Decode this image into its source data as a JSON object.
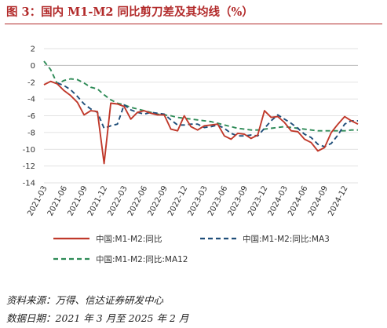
{
  "figure": {
    "title": "图 3：国内 M1-M2 同比剪刀差及其均线（%）",
    "source": "资料来源：万得、信达证券研发中心",
    "date_range": "数据日期：2021 年 3 月至 2025 年 2 月"
  },
  "colors": {
    "title": "#b22a2a",
    "series_m1m2": "#c0392b",
    "series_ma3": "#1f4e79",
    "series_ma12": "#2e8b57",
    "grid": "#d9d9d9"
  },
  "chart_data": {
    "type": "line",
    "title": "",
    "xlabel": "",
    "ylabel": "",
    "ylim": [
      -14,
      2
    ],
    "yticks": [
      2,
      0,
      -2,
      -4,
      -6,
      -8,
      -10,
      -12,
      -14
    ],
    "grid": "horizontal",
    "legend_position": "bottom",
    "x": [
      "2021-03",
      "2021-04",
      "2021-05",
      "2021-06",
      "2021-07",
      "2021-08",
      "2021-09",
      "2021-10",
      "2021-11",
      "2021-12",
      "2022-01",
      "2022-02",
      "2022-03",
      "2022-04",
      "2022-05",
      "2022-06",
      "2022-07",
      "2022-08",
      "2022-09",
      "2022-10",
      "2022-11",
      "2022-12",
      "2023-01",
      "2023-02",
      "2023-03",
      "2023-04",
      "2023-05",
      "2023-06",
      "2023-07",
      "2023-08",
      "2023-09",
      "2023-10",
      "2023-11",
      "2023-12",
      "2024-01",
      "2024-02",
      "2024-03",
      "2024-04",
      "2024-05",
      "2024-06",
      "2024-07",
      "2024-08",
      "2024-09",
      "2024-10",
      "2024-11",
      "2024-12",
      "2025-01",
      "2025-02"
    ],
    "xticks": [
      "2021-03",
      "2021-06",
      "2021-09",
      "2021-12",
      "2022-03",
      "2022-06",
      "2022-09",
      "2022-12",
      "2023-03",
      "2023-06",
      "2023-09",
      "2023-12",
      "2024-03",
      "2024-06",
      "2024-09",
      "2024-12"
    ],
    "series": [
      {
        "name": "中国:M1-M2:同比",
        "style": "solid",
        "values": [
          -2.3,
          -1.9,
          -2.2,
          -3.0,
          -3.6,
          -4.4,
          -5.9,
          -5.4,
          -5.5,
          -11.7,
          -4.5,
          -4.6,
          -4.9,
          -6.4,
          -5.6,
          -5.4,
          -5.7,
          -5.9,
          -5.9,
          -7.6,
          -7.8,
          -6.0,
          -7.3,
          -7.7,
          -7.2,
          -7.1,
          -7.0,
          -8.4,
          -8.8,
          -8.1,
          -8.2,
          -8.7,
          -8.3,
          -5.4,
          -6.2,
          -6.1,
          -6.8,
          -7.8,
          -7.9,
          -8.8,
          -9.2,
          -10.2,
          -9.8,
          -8.0,
          -7.0,
          -6.1,
          -6.6,
          -7.0
        ]
      },
      {
        "name": "中国:M1-M2:同比:MA3",
        "style": "dashed",
        "values": [
          null,
          null,
          -2.1,
          -2.4,
          -2.9,
          -3.7,
          -4.6,
          -5.2,
          -5.6,
          -7.5,
          -7.2,
          -7.0,
          -4.7,
          -5.3,
          -5.6,
          -5.8,
          -5.6,
          -5.7,
          -5.8,
          -6.5,
          -7.1,
          -7.1,
          -7.0,
          -7.0,
          -7.4,
          -7.3,
          -7.1,
          -7.5,
          -8.1,
          -8.4,
          -8.4,
          -8.3,
          -8.4,
          -7.5,
          -6.6,
          -5.9,
          -6.4,
          -6.9,
          -7.5,
          -8.2,
          -8.6,
          -9.4,
          -9.7,
          -9.3,
          -8.3,
          -7.0,
          -6.6,
          -6.6
        ]
      },
      {
        "name": "中国:M1-M2:同比:MA12",
        "style": "dashed",
        "values": [
          0.5,
          -0.5,
          -2.2,
          -1.8,
          -1.6,
          -1.7,
          -2.1,
          -2.6,
          -2.8,
          -3.5,
          -4.1,
          -4.5,
          -4.7,
          -5.0,
          -5.2,
          -5.4,
          -5.6,
          -5.8,
          -5.9,
          -6.0,
          -6.2,
          -6.3,
          -6.4,
          -6.5,
          -6.6,
          -6.7,
          -6.9,
          -7.1,
          -7.3,
          -7.5,
          -7.6,
          -7.7,
          -7.7,
          -7.6,
          -7.5,
          -7.4,
          -7.3,
          -7.4,
          -7.5,
          -7.6,
          -7.7,
          -7.8,
          -7.8,
          -7.8,
          -7.8,
          -7.8,
          -7.7,
          -7.7
        ]
      }
    ]
  }
}
